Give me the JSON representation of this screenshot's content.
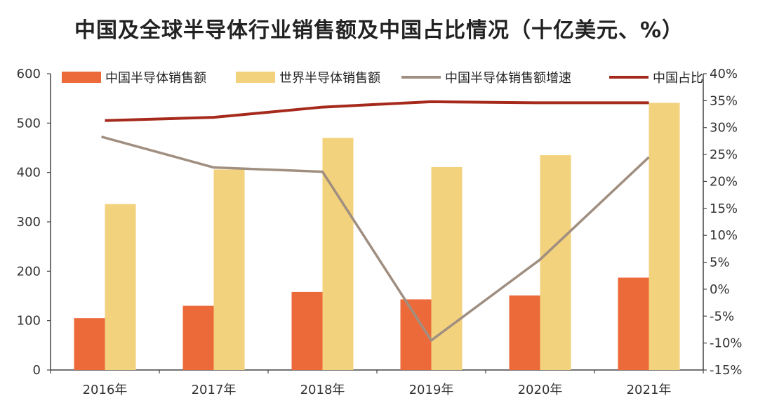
{
  "chart_data": {
    "type": "bar",
    "title": "中国及全球半导体行业销售额及中国占比情况（十亿美元、%）",
    "categories": [
      "2016年",
      "2017年",
      "2018年",
      "2019年",
      "2020年",
      "2021年"
    ],
    "series": [
      {
        "name": "中国半导体销售额",
        "kind": "bar",
        "axis": "left",
        "color": "#ec6a3a",
        "values": [
          105,
          130,
          158,
          143,
          151,
          187
        ]
      },
      {
        "name": "世界半导体销售额",
        "kind": "bar",
        "axis": "left",
        "color": "#f3d27e",
        "values": [
          336,
          406,
          470,
          411,
          435,
          541
        ]
      },
      {
        "name": "中国半导体销售额增速",
        "kind": "line",
        "axis": "right",
        "unit": "%",
        "color": "#a08f80",
        "values": [
          28.3,
          22.6,
          21.8,
          -9.5,
          5.5,
          24.5
        ]
      },
      {
        "name": "中国占比",
        "kind": "line",
        "axis": "right",
        "unit": "%",
        "color": "#a62a1c",
        "values": [
          31.3,
          31.9,
          33.8,
          34.8,
          34.6,
          34.6
        ]
      }
    ],
    "left_axis": {
      "min": 0,
      "max": 600,
      "ticks": [
        "0",
        "100",
        "200",
        "300",
        "400",
        "500",
        "600"
      ]
    },
    "right_axis": {
      "min": -15,
      "max": 40,
      "ticks": [
        "-15%",
        "-10%",
        "-5%",
        "0%",
        "5%",
        "10%",
        "15%",
        "20%",
        "25%",
        "30%",
        "35%",
        "40%"
      ]
    },
    "legend_position": "top"
  }
}
